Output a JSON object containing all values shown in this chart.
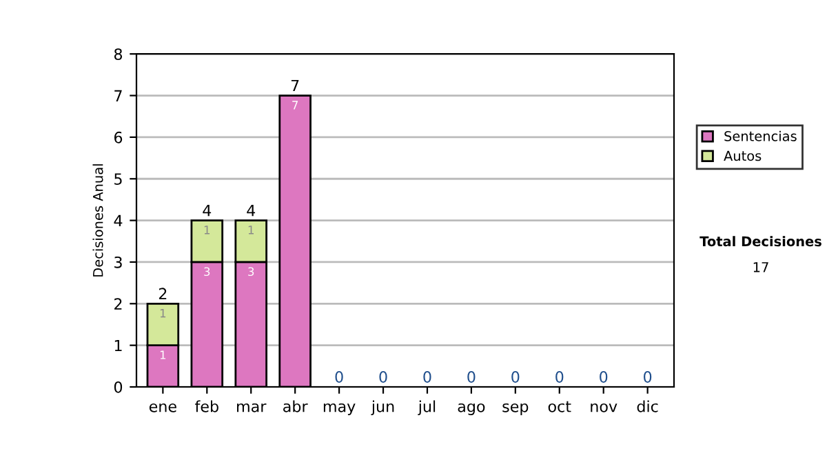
{
  "chart_data": {
    "type": "bar",
    "stacked": true,
    "ylabel": "Decisiones Anual",
    "categories": [
      "ene",
      "feb",
      "mar",
      "abr",
      "may",
      "jun",
      "jul",
      "ago",
      "sep",
      "oct",
      "nov",
      "dic"
    ],
    "series": [
      {
        "name": "Sentencias",
        "color": "#dd77c0",
        "values": [
          1,
          3,
          3,
          7,
          0,
          0,
          0,
          0,
          0,
          0,
          0,
          0
        ],
        "value_labels": [
          "1",
          "3",
          "3",
          "7",
          null,
          null,
          null,
          null,
          null,
          null,
          null,
          null
        ]
      },
      {
        "name": "Autos",
        "color": "#d4e89a",
        "values": [
          1,
          1,
          1,
          0,
          0,
          0,
          0,
          0,
          0,
          0,
          0,
          0
        ],
        "value_labels": [
          "1",
          "1",
          "1",
          null,
          null,
          null,
          null,
          null,
          null,
          null,
          null,
          null
        ]
      }
    ],
    "totals": [
      "2",
      "4",
      "4",
      "7",
      "0",
      "0",
      "0",
      "0",
      "0",
      "0",
      "0",
      "0"
    ],
    "ylim": [
      0,
      8
    ],
    "yticks": [
      0,
      1,
      2,
      3,
      4,
      5,
      6,
      7,
      8
    ],
    "grid": "y",
    "legend": "right",
    "annotations": [
      "Total Decisiones",
      "17"
    ]
  }
}
